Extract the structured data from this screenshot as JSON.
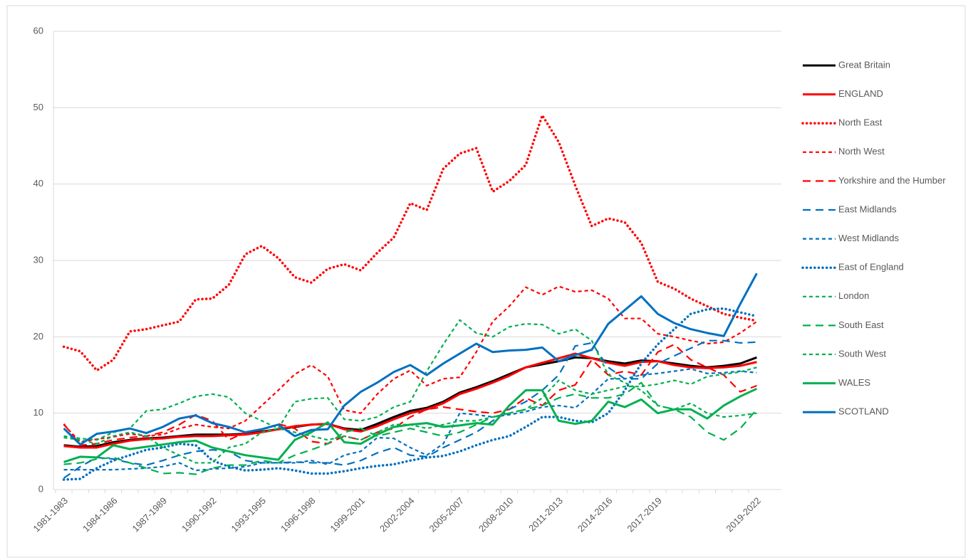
{
  "chart_data": {
    "type": "line",
    "categories": [
      "1981-1983",
      null,
      null,
      "1984-1986",
      null,
      null,
      "1987-1989",
      null,
      null,
      "1990-1992",
      null,
      null,
      "1993-1995",
      null,
      null,
      "1996-1998",
      null,
      null,
      "1999-2001",
      null,
      null,
      "2002-2004",
      null,
      null,
      "2005-2007",
      null,
      null,
      "2008-2010",
      null,
      null,
      "2011-2013",
      null,
      null,
      "2014-2016",
      null,
      null,
      "2017-2019",
      null,
      null,
      null,
      null,
      null,
      "2019-2022"
    ],
    "ylim": [
      0,
      60
    ],
    "yticks": [
      0,
      10,
      20,
      30,
      40,
      50,
      60
    ],
    "grid": true,
    "legend": "right",
    "series": [
      {
        "name": "Great Britain",
        "color": "#000000",
        "dash": "solid",
        "values": [
          5.8,
          5.6,
          5.7,
          6.2,
          6.5,
          6.7,
          6.8,
          7.0,
          7.2,
          7.2,
          7.2,
          7.3,
          7.6,
          7.9,
          8.2,
          8.5,
          8.6,
          8.0,
          7.8,
          8.6,
          9.5,
          10.3,
          10.7,
          11.5,
          12.7,
          13.4,
          14.2,
          15.1,
          16.0,
          16.4,
          16.8,
          17.3,
          17.2,
          16.8,
          16.5,
          16.9,
          16.8,
          16.5,
          16.2,
          16.0,
          16.2,
          16.5,
          17.3
        ]
      },
      {
        "name": "ENGLAND",
        "color": "#ff0000",
        "dash": "solid",
        "values": [
          5.7,
          5.5,
          5.5,
          6.0,
          6.4,
          6.6,
          6.7,
          6.9,
          7.0,
          7.0,
          7.1,
          7.2,
          7.5,
          7.9,
          8.3,
          8.5,
          8.6,
          7.9,
          7.6,
          8.3,
          9.2,
          10.0,
          10.5,
          11.3,
          12.5,
          13.2,
          14.0,
          14.9,
          16.0,
          16.6,
          17.2,
          17.8,
          17.2,
          16.6,
          16.2,
          16.7,
          16.8,
          16.3,
          16.0,
          15.9,
          16.0,
          16.2,
          16.7
        ]
      },
      {
        "name": "North East",
        "color": "#ff0000",
        "dash": "dot",
        "values": [
          18.7,
          18.1,
          15.6,
          17.0,
          20.7,
          21.0,
          21.5,
          22.0,
          24.9,
          25.0,
          26.8,
          30.8,
          31.9,
          30.3,
          27.8,
          27.1,
          28.9,
          29.5,
          28.7,
          31.0,
          33.0,
          37.5,
          36.6,
          42.0,
          44.0,
          44.7,
          39.0,
          40.4,
          42.5,
          49.0,
          45.5,
          39.8,
          34.5,
          35.5,
          35.0,
          32.3,
          27.2,
          26.3,
          25.0,
          24.0,
          23.0,
          22.5,
          22.1
        ]
      },
      {
        "name": "North West",
        "color": "#ff0000",
        "dash": "short",
        "values": [
          8.5,
          6.2,
          6.6,
          6.9,
          7.3,
          7.0,
          7.2,
          8.0,
          8.5,
          8.2,
          8.0,
          9.0,
          11.0,
          13.0,
          15.1,
          16.3,
          14.8,
          10.4,
          10.0,
          12.5,
          14.5,
          15.6,
          13.6,
          14.5,
          14.7,
          18.0,
          22.0,
          24.0,
          26.5,
          25.5,
          26.6,
          25.9,
          26.1,
          25.0,
          22.4,
          22.4,
          20.4,
          20.0,
          19.5,
          19.1,
          19.3,
          20.5,
          22.0
        ]
      },
      {
        "name": "Yorkshire and the Humber",
        "color": "#ff0000",
        "dash": "long",
        "values": [
          8.6,
          5.8,
          6.0,
          6.5,
          6.8,
          7.0,
          7.5,
          8.5,
          9.8,
          9.0,
          6.5,
          7.5,
          7.8,
          8.6,
          8.0,
          6.3,
          6.0,
          7.0,
          6.5,
          7.5,
          8.0,
          9.5,
          10.5,
          10.8,
          10.5,
          10.2,
          10.0,
          10.5,
          12.0,
          11.0,
          13.0,
          13.7,
          17.0,
          15.0,
          15.5,
          15.0,
          18.0,
          19.0,
          17.0,
          16.0,
          15.0,
          12.8,
          13.6
        ]
      },
      {
        "name": "East Midlands",
        "color": "#0070c0",
        "dash": "long",
        "values": [
          1.5,
          3.0,
          4.2,
          4.0,
          3.5,
          3.2,
          3.8,
          4.5,
          5.0,
          5.2,
          5.0,
          3.8,
          3.5,
          3.5,
          3.6,
          3.5,
          3.5,
          3.2,
          3.8,
          4.8,
          5.5,
          4.5,
          4.3,
          5.5,
          6.5,
          7.5,
          9.0,
          10.5,
          11.5,
          13.0,
          15.0,
          18.8,
          19.2,
          16.0,
          14.5,
          14.5,
          16.5,
          17.5,
          18.5,
          19.5,
          19.5,
          19.2,
          19.3
        ]
      },
      {
        "name": "West Midlands",
        "color": "#0070c0",
        "dash": "short",
        "values": [
          2.6,
          2.6,
          2.6,
          2.6,
          2.7,
          2.8,
          3.0,
          3.5,
          2.5,
          2.7,
          2.8,
          3.0,
          3.5,
          3.5,
          3.5,
          3.8,
          3.3,
          4.5,
          5.0,
          6.8,
          6.7,
          5.5,
          4.5,
          6.0,
          10.0,
          9.8,
          9.5,
          9.8,
          10.2,
          10.8,
          11.0,
          10.7,
          12.5,
          14.5,
          14.5,
          15.0,
          15.2,
          15.5,
          15.8,
          15.2,
          15.3,
          15.5,
          15.3
        ]
      },
      {
        "name": "East of England",
        "color": "#0070c0",
        "dash": "dot",
        "values": [
          1.3,
          1.4,
          2.8,
          3.8,
          4.5,
          5.2,
          5.5,
          6.0,
          5.8,
          3.8,
          3.0,
          2.5,
          2.6,
          2.8,
          2.5,
          2.1,
          2.1,
          2.4,
          2.8,
          3.1,
          3.3,
          3.8,
          4.2,
          4.4,
          5.0,
          5.8,
          6.5,
          7.0,
          8.2,
          9.5,
          9.5,
          9.0,
          8.8,
          10.0,
          13.0,
          16.5,
          19.0,
          21.0,
          23.0,
          23.6,
          23.7,
          23.2,
          22.7
        ]
      },
      {
        "name": "London",
        "color": "#00b050",
        "dash": "short",
        "values": [
          7.0,
          6.7,
          6.5,
          7.5,
          8.0,
          10.3,
          10.5,
          11.3,
          12.2,
          12.5,
          12.1,
          10.0,
          9.0,
          8.0,
          11.5,
          11.9,
          12.0,
          9.2,
          9.0,
          9.5,
          10.8,
          11.5,
          15.5,
          19.0,
          22.2,
          20.5,
          20.0,
          21.3,
          21.7,
          21.6,
          20.4,
          21.0,
          19.5,
          15.0,
          14.0,
          13.0,
          11.0,
          10.5,
          11.3,
          10.0,
          9.5,
          9.7,
          10.0
        ]
      },
      {
        "name": "South East",
        "color": "#00b050",
        "dash": "long",
        "values": [
          3.3,
          3.5,
          4.0,
          4.2,
          3.5,
          2.8,
          2.1,
          2.2,
          2.0,
          2.8,
          3.2,
          3.2,
          3.8,
          3.5,
          4.5,
          5.2,
          6.0,
          7.5,
          8.0,
          7.0,
          7.5,
          8.0,
          7.5,
          7.0,
          7.5,
          8.5,
          9.5,
          10.0,
          10.5,
          11.0,
          12.0,
          12.5,
          12.0,
          12.0,
          12.5,
          14.0,
          11.0,
          10.5,
          9.5,
          7.5,
          6.5,
          8.0,
          10.5
        ]
      },
      {
        "name": "South West",
        "color": "#00b050",
        "dash": "short",
        "values": [
          6.8,
          6.5,
          6.0,
          7.0,
          7.5,
          7.0,
          5.5,
          4.5,
          3.5,
          3.5,
          5.5,
          6.0,
          7.5,
          8.0,
          7.5,
          7.0,
          6.5,
          7.0,
          6.5,
          7.5,
          8.5,
          8.5,
          8.0,
          8.5,
          9.0,
          9.0,
          9.5,
          10.0,
          10.5,
          12.0,
          14.3,
          13.0,
          12.5,
          13.0,
          13.5,
          13.5,
          13.8,
          14.3,
          13.8,
          14.8,
          15.1,
          15.4,
          16.0
        ]
      },
      {
        "name": "WALES",
        "color": "#00b050",
        "dash": "solid",
        "values": [
          3.6,
          4.3,
          4.2,
          5.8,
          5.3,
          5.6,
          5.9,
          6.2,
          6.4,
          5.5,
          5.0,
          4.5,
          4.2,
          3.9,
          6.5,
          7.5,
          8.8,
          6.2,
          6.0,
          7.2,
          8.2,
          8.5,
          8.7,
          8.2,
          8.4,
          8.7,
          8.5,
          11.0,
          13.0,
          13.0,
          9.0,
          8.6,
          9.0,
          11.5,
          10.8,
          11.8,
          10.0,
          10.5,
          10.5,
          9.3,
          11.0,
          12.2,
          13.2
        ]
      },
      {
        "name": "SCOTLAND",
        "color": "#0070c0",
        "dash": "solid",
        "values": [
          8.0,
          5.9,
          7.3,
          7.6,
          8.0,
          7.4,
          8.2,
          9.3,
          9.7,
          8.7,
          8.2,
          7.5,
          7.9,
          8.5,
          7.0,
          7.8,
          7.9,
          11.0,
          12.8,
          14.0,
          15.4,
          16.3,
          15.0,
          16.5,
          17.8,
          19.1,
          18.0,
          18.2,
          18.3,
          18.6,
          16.8,
          17.6,
          18.3,
          21.7,
          23.5,
          25.3,
          23.0,
          21.8,
          21.0,
          20.5,
          20.1,
          24.3,
          28.3
        ]
      }
    ]
  }
}
